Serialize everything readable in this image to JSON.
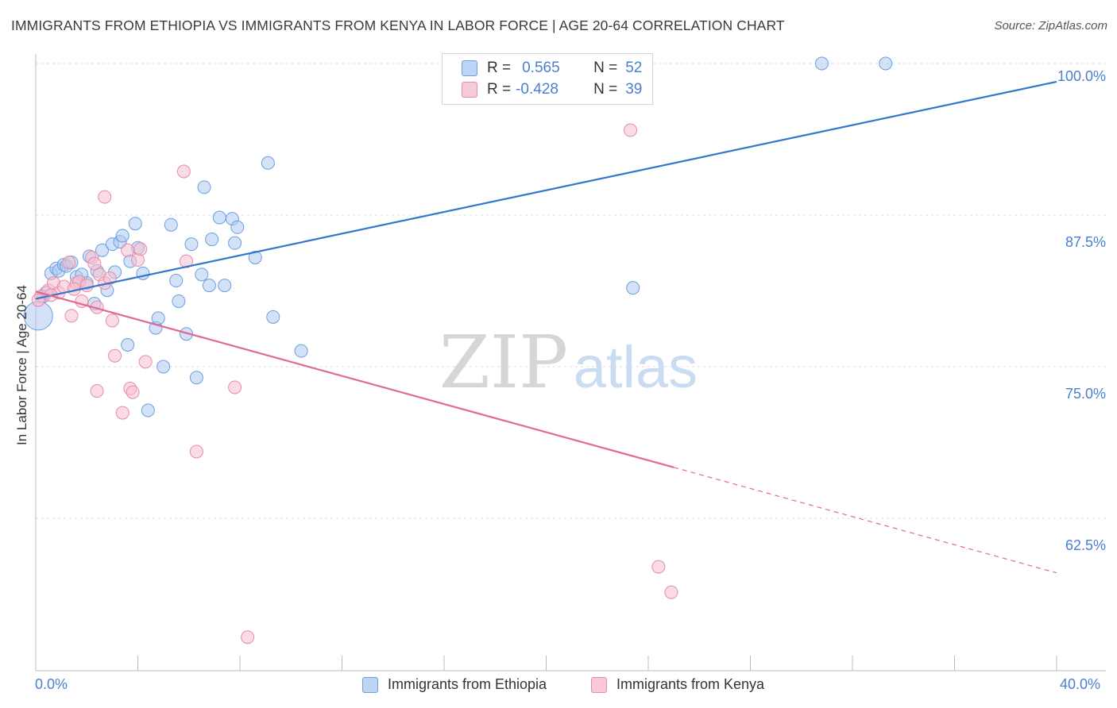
{
  "chart_data": {
    "type": "scatter",
    "title": "IMMIGRANTS FROM ETHIOPIA VS IMMIGRANTS FROM KENYA IN LABOR FORCE | AGE 20-64 CORRELATION CHART",
    "source": "Source: ZipAtlas.com",
    "ylabel": "In Labor Force | Age 20-64",
    "xlim": [
      0,
      40
    ],
    "ylim": [
      50,
      100
    ],
    "x_tick_labels": [
      "0.0%",
      "40.0%"
    ],
    "y_ticks": [
      62.5,
      75.0,
      87.5,
      100.0
    ],
    "y_tick_labels": [
      "62.5%",
      "75.0%",
      "87.5%",
      "100.0%"
    ],
    "watermark": {
      "zip": "ZIP",
      "atlas": "atlas"
    },
    "legend": {
      "r_label": "R =",
      "n_label": "N =",
      "entries": [
        {
          "r": "0.565",
          "n": "52"
        },
        {
          "r": "-0.428",
          "n": "39"
        }
      ]
    },
    "series": [
      {
        "name": "Immigrants from Ethiopia",
        "color": "#6a9fe0",
        "fill": "#aecbf0",
        "line_color": "#3377cc",
        "trend": {
          "x0": 0,
          "y0": 80.6,
          "x1": 40,
          "y1": 98.5
        },
        "points": [
          [
            0.3,
            80.8
          ],
          [
            0.6,
            82.7
          ],
          [
            0.8,
            83.1
          ],
          [
            0.9,
            82.9
          ],
          [
            1.1,
            83.4
          ],
          [
            1.2,
            83.3
          ],
          [
            1.4,
            83.6
          ],
          [
            1.6,
            82.4
          ],
          [
            1.8,
            82.6
          ],
          [
            2.0,
            81.9
          ],
          [
            2.1,
            84.1
          ],
          [
            2.3,
            80.2
          ],
          [
            2.4,
            82.9
          ],
          [
            2.6,
            84.6
          ],
          [
            2.8,
            81.3
          ],
          [
            3.0,
            85.1
          ],
          [
            3.1,
            82.8
          ],
          [
            3.3,
            85.3
          ],
          [
            3.4,
            85.8
          ],
          [
            3.6,
            76.8
          ],
          [
            3.7,
            83.7
          ],
          [
            3.9,
            86.8
          ],
          [
            4.0,
            84.8
          ],
          [
            4.2,
            82.7
          ],
          [
            4.4,
            71.4
          ],
          [
            4.7,
            78.2
          ],
          [
            4.8,
            79.0
          ],
          [
            5.0,
            75.0
          ],
          [
            5.3,
            86.7
          ],
          [
            5.5,
            82.1
          ],
          [
            5.6,
            80.4
          ],
          [
            5.9,
            77.7
          ],
          [
            6.1,
            85.1
          ],
          [
            6.3,
            74.1
          ],
          [
            6.5,
            82.6
          ],
          [
            6.6,
            89.8
          ],
          [
            6.8,
            81.7
          ],
          [
            6.9,
            85.5
          ],
          [
            7.2,
            87.3
          ],
          [
            7.4,
            81.7
          ],
          [
            7.7,
            87.2
          ],
          [
            7.8,
            85.2
          ],
          [
            7.9,
            86.5
          ],
          [
            8.6,
            84.0
          ],
          [
            9.1,
            91.8
          ],
          [
            9.3,
            79.1
          ],
          [
            10.4,
            76.3
          ],
          [
            23.4,
            81.5
          ],
          [
            30.8,
            100.0
          ],
          [
            33.3,
            100.0
          ],
          [
            0.1,
            79.2
          ],
          [
            0.4,
            81.1
          ]
        ]
      },
      {
        "name": "Immigrants from Kenya",
        "color": "#e88aa8",
        "fill": "#f5bfd0",
        "line_color": "#e06a94",
        "trend": {
          "x0": 0,
          "y0": 81.2,
          "x1": 40,
          "y1": 58.0,
          "solid_until": 25.0
        },
        "points": [
          [
            0.2,
            80.8
          ],
          [
            0.5,
            81.3
          ],
          [
            0.7,
            81.9
          ],
          [
            0.9,
            81.1
          ],
          [
            1.1,
            81.6
          ],
          [
            1.3,
            83.6
          ],
          [
            1.4,
            79.2
          ],
          [
            1.6,
            81.9
          ],
          [
            1.7,
            82.0
          ],
          [
            1.8,
            80.4
          ],
          [
            2.0,
            81.7
          ],
          [
            2.2,
            84.0
          ],
          [
            2.3,
            83.5
          ],
          [
            2.4,
            79.9
          ],
          [
            2.5,
            82.6
          ],
          [
            2.7,
            81.9
          ],
          [
            2.7,
            89.0
          ],
          [
            2.9,
            82.3
          ],
          [
            3.0,
            78.8
          ],
          [
            3.1,
            75.9
          ],
          [
            3.4,
            71.2
          ],
          [
            3.6,
            84.6
          ],
          [
            3.7,
            73.2
          ],
          [
            3.8,
            72.9
          ],
          [
            4.0,
            83.8
          ],
          [
            4.1,
            84.7
          ],
          [
            4.3,
            75.4
          ],
          [
            5.8,
            91.1
          ],
          [
            5.9,
            83.7
          ],
          [
            6.3,
            68.0
          ],
          [
            7.8,
            73.3
          ],
          [
            8.3,
            52.7
          ],
          [
            23.3,
            94.5
          ],
          [
            24.4,
            58.5
          ],
          [
            24.9,
            56.4
          ],
          [
            0.1,
            80.5
          ],
          [
            2.4,
            73.0
          ],
          [
            1.5,
            81.4
          ],
          [
            0.6,
            80.9
          ]
        ]
      }
    ]
  }
}
